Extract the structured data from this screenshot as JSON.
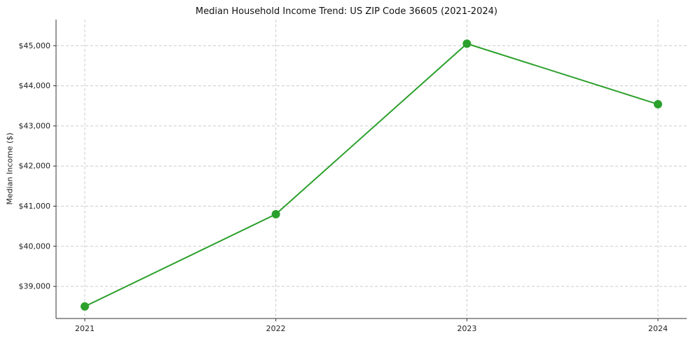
{
  "chart_data": {
    "type": "line",
    "title": "Median Household Income Trend: US ZIP Code 36605 (2021-2024)",
    "xlabel": "",
    "ylabel": "Median Income ($)",
    "categories": [
      "2021",
      "2022",
      "2023",
      "2024"
    ],
    "series": [
      {
        "name": "Median Household Income",
        "values": [
          38500,
          40800,
          45050,
          43540
        ]
      }
    ],
    "ylim": [
      38200,
      45650
    ],
    "yticks": [
      39000,
      40000,
      41000,
      42000,
      43000,
      44000,
      45000
    ],
    "ytick_labels": [
      "$39,000",
      "$40,000",
      "$41,000",
      "$42,000",
      "$43,000",
      "$44,000",
      "$45,000"
    ],
    "line_color": "#2ca02c",
    "marker_color": "#2ca02c",
    "grid": true,
    "grid_style": "dashed",
    "grid_color": "#cccccc",
    "axis_color": "#333333",
    "tick_label_color": "#222222",
    "legend_position": "none"
  }
}
